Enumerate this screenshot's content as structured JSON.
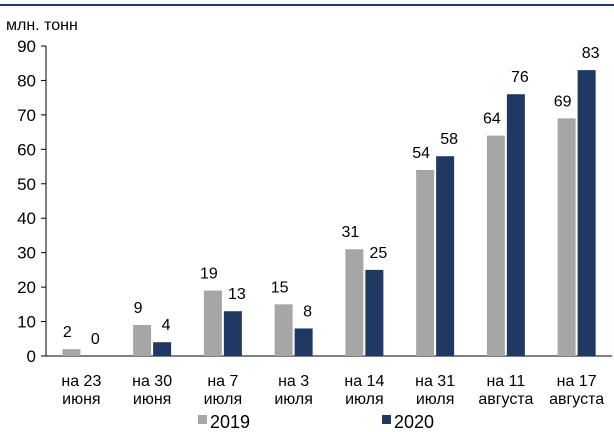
{
  "chart_data": {
    "type": "bar",
    "ylabel": "млн. тонн",
    "ylim": [
      0,
      90
    ],
    "yticks": [
      0,
      10,
      20,
      30,
      40,
      50,
      60,
      70,
      80,
      90
    ],
    "categories": [
      [
        "на 23",
        "июня"
      ],
      [
        "на 30",
        "июня"
      ],
      [
        "на 7",
        "июля"
      ],
      [
        "на 3",
        "июля"
      ],
      [
        "на 14",
        "июля"
      ],
      [
        "на 31",
        "июля"
      ],
      [
        "на 11",
        "августа"
      ],
      [
        "на 17",
        "августа"
      ]
    ],
    "series": [
      {
        "name": "2019",
        "color": "#a6a6a6",
        "values": [
          2,
          9,
          19,
          15,
          31,
          54,
          64,
          69
        ]
      },
      {
        "name": "2020",
        "color": "#1f3864",
        "values": [
          0,
          4,
          13,
          8,
          25,
          58,
          76,
          83
        ]
      }
    ],
    "grid": false,
    "legend_position": "bottom-center",
    "data_labels": true
  }
}
